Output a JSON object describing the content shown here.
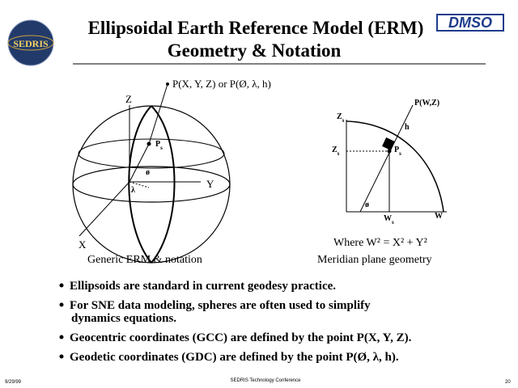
{
  "header": {
    "title_line1": "Ellipsoidal Earth Reference Model (ERM)",
    "title_line2": "Geometry & Notation",
    "left_logo": "SEDRIS",
    "right_logo": "DMSO"
  },
  "left_diagram": {
    "point_label": "P(X, Y, Z) or P(Ø, λ, h)",
    "z_axis": "Z",
    "y_axis": "Y",
    "x_axis": "X",
    "surface_point": {
      "text": "P",
      "sub": "s"
    },
    "phi": "ø",
    "lambda": "λ",
    "caption": "Generic ERM & notation"
  },
  "right_diagram": {
    "point_label": "P(W,Z)",
    "z_top": {
      "text": "Z",
      "sub": "s"
    },
    "h": "h",
    "z_mid": {
      "text": "Z",
      "sub": "s"
    },
    "surface_point": {
      "text": "P",
      "sub": "s"
    },
    "phi": "ø",
    "w_s": {
      "text": "W",
      "sub": "s"
    },
    "w_axis": "W",
    "equation": "Where  W² = X² + Y²",
    "caption": "Meridian plane geometry"
  },
  "bullets": [
    "Ellipsoids are standard in current geodesy practice.",
    [
      "For SNE data modeling, spheres are often used to simplify",
      "dynamics equations."
    ],
    "Geocentric coordinates (GCC) are defined by the point P(X, Y, Z).",
    "Geodetic coordinates (GDC) are defined by the point P(Ø, λ, h)."
  ],
  "footer": {
    "date": "9/29/99",
    "conference": "SEDRIS Technology Conference",
    "page": "20"
  }
}
